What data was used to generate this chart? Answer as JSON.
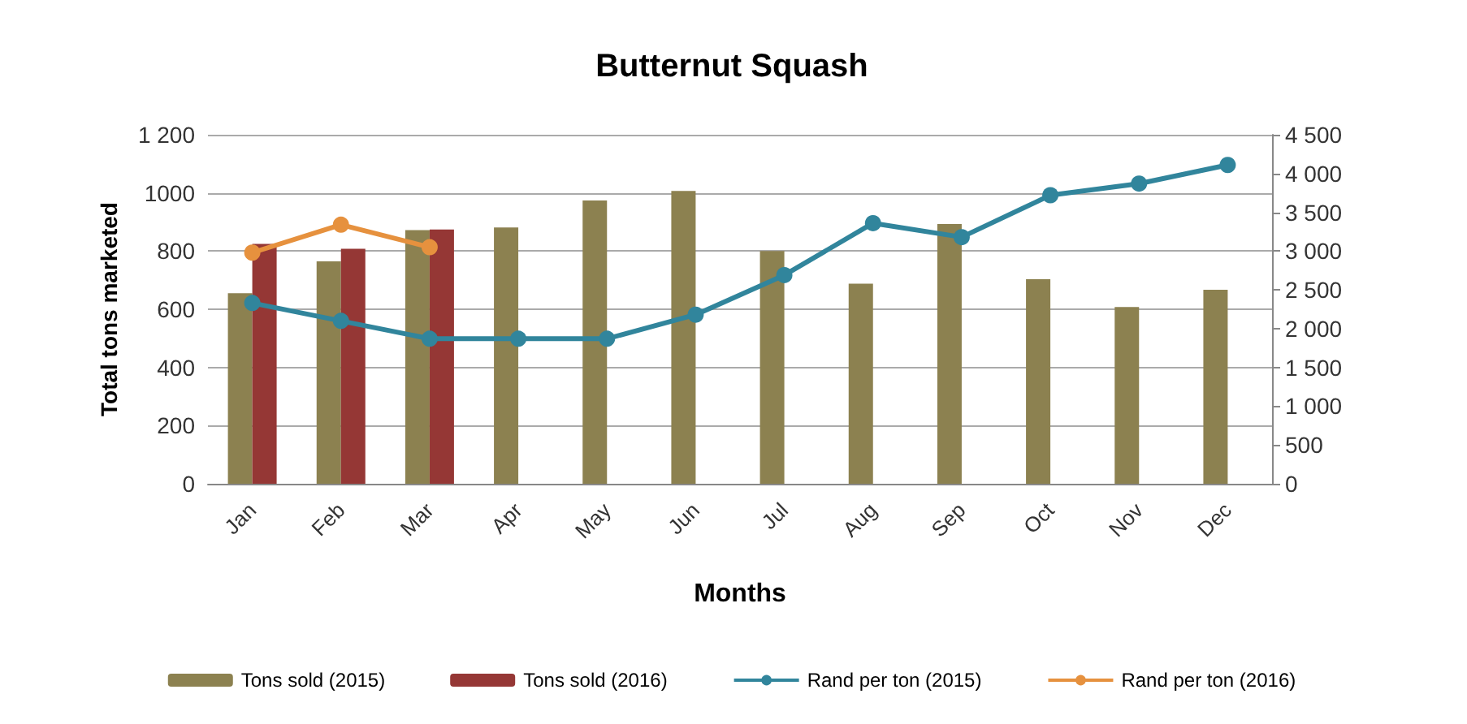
{
  "chart_data": {
    "type": "bar",
    "title": "Butternut Squash",
    "xlabel": "Months",
    "ylabel": "Total tons marketed",
    "categories": [
      "Jan",
      "Feb",
      "Mar",
      "Apr",
      "May",
      "Jun",
      "Jul",
      "Aug",
      "Sep",
      "Oct",
      "Nov",
      "Dec"
    ],
    "series": [
      {
        "name": "Tons sold (2015)",
        "color": "#8c8150",
        "values": [
          655,
          765,
          872,
          881,
          974,
          1007,
          800,
          688,
          893,
          703,
          608,
          667
        ]
      },
      {
        "name": "Tons sold (2016)",
        "color": "#953735",
        "values": [
          825,
          808,
          874,
          null,
          null,
          null,
          null,
          null,
          null,
          null,
          null,
          null
        ]
      },
      {
        "name": "Rand per ton (2015)",
        "type": "line",
        "axis": "y2",
        "color": "#31859c",
        "values": [
          2330,
          2100,
          1870,
          1870,
          1870,
          2180,
          2690,
          3360,
          3180,
          3720,
          3870,
          4110
        ]
      },
      {
        "name": "Rand per ton (2016)",
        "type": "line",
        "axis": "y2",
        "color": "#e6913e",
        "values": [
          2980,
          3340,
          3050,
          null,
          null,
          null,
          null,
          null,
          null,
          null,
          null,
          null
        ]
      }
    ],
    "ylim": [
      0,
      1200
    ],
    "yticks": [
      0,
      200,
      400,
      600,
      800,
      1000,
      {
        "value": 1200,
        "label": "1 200"
      }
    ],
    "y2lim": [
      0,
      4500
    ],
    "y2ticks": [
      0,
      500,
      {
        "value": 1000,
        "label": "1 000"
      },
      {
        "value": 1500,
        "label": "1 500"
      },
      {
        "value": 2000,
        "label": "2 000"
      },
      {
        "value": 2500,
        "label": "2 500"
      },
      {
        "value": 3000,
        "label": "3 000"
      },
      {
        "value": 3500,
        "label": "3 500"
      },
      {
        "value": 4000,
        "label": "4 000"
      },
      {
        "value": 4500,
        "label": "4 500"
      }
    ],
    "grid": "y",
    "legend": "bottom",
    "marker": "circle",
    "line_style": "solid"
  }
}
